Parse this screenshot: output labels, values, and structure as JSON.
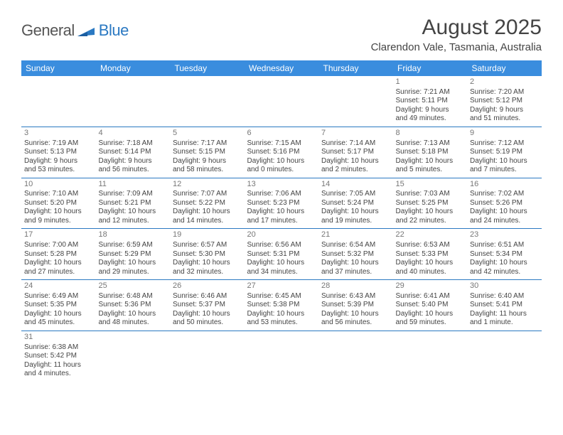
{
  "brand": {
    "word1": "General",
    "word2": "Blue",
    "logo_color": "#2b79c2"
  },
  "title": {
    "month": "August 2025",
    "location": "Clarendon Vale, Tasmania, Australia"
  },
  "colors": {
    "header_bg": "#3a8dde",
    "header_text": "#ffffff",
    "border": "#2b79c2",
    "body_text": "#444444",
    "daynum": "#777777"
  },
  "weekdays": [
    "Sunday",
    "Monday",
    "Tuesday",
    "Wednesday",
    "Thursday",
    "Friday",
    "Saturday"
  ],
  "weeks": [
    [
      null,
      null,
      null,
      null,
      null,
      {
        "n": "1",
        "sr": "Sunrise: 7:21 AM",
        "ss": "Sunset: 5:11 PM",
        "d1": "Daylight: 9 hours",
        "d2": "and 49 minutes."
      },
      {
        "n": "2",
        "sr": "Sunrise: 7:20 AM",
        "ss": "Sunset: 5:12 PM",
        "d1": "Daylight: 9 hours",
        "d2": "and 51 minutes."
      }
    ],
    [
      {
        "n": "3",
        "sr": "Sunrise: 7:19 AM",
        "ss": "Sunset: 5:13 PM",
        "d1": "Daylight: 9 hours",
        "d2": "and 53 minutes."
      },
      {
        "n": "4",
        "sr": "Sunrise: 7:18 AM",
        "ss": "Sunset: 5:14 PM",
        "d1": "Daylight: 9 hours",
        "d2": "and 56 minutes."
      },
      {
        "n": "5",
        "sr": "Sunrise: 7:17 AM",
        "ss": "Sunset: 5:15 PM",
        "d1": "Daylight: 9 hours",
        "d2": "and 58 minutes."
      },
      {
        "n": "6",
        "sr": "Sunrise: 7:15 AM",
        "ss": "Sunset: 5:16 PM",
        "d1": "Daylight: 10 hours",
        "d2": "and 0 minutes."
      },
      {
        "n": "7",
        "sr": "Sunrise: 7:14 AM",
        "ss": "Sunset: 5:17 PM",
        "d1": "Daylight: 10 hours",
        "d2": "and 2 minutes."
      },
      {
        "n": "8",
        "sr": "Sunrise: 7:13 AM",
        "ss": "Sunset: 5:18 PM",
        "d1": "Daylight: 10 hours",
        "d2": "and 5 minutes."
      },
      {
        "n": "9",
        "sr": "Sunrise: 7:12 AM",
        "ss": "Sunset: 5:19 PM",
        "d1": "Daylight: 10 hours",
        "d2": "and 7 minutes."
      }
    ],
    [
      {
        "n": "10",
        "sr": "Sunrise: 7:10 AM",
        "ss": "Sunset: 5:20 PM",
        "d1": "Daylight: 10 hours",
        "d2": "and 9 minutes."
      },
      {
        "n": "11",
        "sr": "Sunrise: 7:09 AM",
        "ss": "Sunset: 5:21 PM",
        "d1": "Daylight: 10 hours",
        "d2": "and 12 minutes."
      },
      {
        "n": "12",
        "sr": "Sunrise: 7:07 AM",
        "ss": "Sunset: 5:22 PM",
        "d1": "Daylight: 10 hours",
        "d2": "and 14 minutes."
      },
      {
        "n": "13",
        "sr": "Sunrise: 7:06 AM",
        "ss": "Sunset: 5:23 PM",
        "d1": "Daylight: 10 hours",
        "d2": "and 17 minutes."
      },
      {
        "n": "14",
        "sr": "Sunrise: 7:05 AM",
        "ss": "Sunset: 5:24 PM",
        "d1": "Daylight: 10 hours",
        "d2": "and 19 minutes."
      },
      {
        "n": "15",
        "sr": "Sunrise: 7:03 AM",
        "ss": "Sunset: 5:25 PM",
        "d1": "Daylight: 10 hours",
        "d2": "and 22 minutes."
      },
      {
        "n": "16",
        "sr": "Sunrise: 7:02 AM",
        "ss": "Sunset: 5:26 PM",
        "d1": "Daylight: 10 hours",
        "d2": "and 24 minutes."
      }
    ],
    [
      {
        "n": "17",
        "sr": "Sunrise: 7:00 AM",
        "ss": "Sunset: 5:28 PM",
        "d1": "Daylight: 10 hours",
        "d2": "and 27 minutes."
      },
      {
        "n": "18",
        "sr": "Sunrise: 6:59 AM",
        "ss": "Sunset: 5:29 PM",
        "d1": "Daylight: 10 hours",
        "d2": "and 29 minutes."
      },
      {
        "n": "19",
        "sr": "Sunrise: 6:57 AM",
        "ss": "Sunset: 5:30 PM",
        "d1": "Daylight: 10 hours",
        "d2": "and 32 minutes."
      },
      {
        "n": "20",
        "sr": "Sunrise: 6:56 AM",
        "ss": "Sunset: 5:31 PM",
        "d1": "Daylight: 10 hours",
        "d2": "and 34 minutes."
      },
      {
        "n": "21",
        "sr": "Sunrise: 6:54 AM",
        "ss": "Sunset: 5:32 PM",
        "d1": "Daylight: 10 hours",
        "d2": "and 37 minutes."
      },
      {
        "n": "22",
        "sr": "Sunrise: 6:53 AM",
        "ss": "Sunset: 5:33 PM",
        "d1": "Daylight: 10 hours",
        "d2": "and 40 minutes."
      },
      {
        "n": "23",
        "sr": "Sunrise: 6:51 AM",
        "ss": "Sunset: 5:34 PM",
        "d1": "Daylight: 10 hours",
        "d2": "and 42 minutes."
      }
    ],
    [
      {
        "n": "24",
        "sr": "Sunrise: 6:49 AM",
        "ss": "Sunset: 5:35 PM",
        "d1": "Daylight: 10 hours",
        "d2": "and 45 minutes."
      },
      {
        "n": "25",
        "sr": "Sunrise: 6:48 AM",
        "ss": "Sunset: 5:36 PM",
        "d1": "Daylight: 10 hours",
        "d2": "and 48 minutes."
      },
      {
        "n": "26",
        "sr": "Sunrise: 6:46 AM",
        "ss": "Sunset: 5:37 PM",
        "d1": "Daylight: 10 hours",
        "d2": "and 50 minutes."
      },
      {
        "n": "27",
        "sr": "Sunrise: 6:45 AM",
        "ss": "Sunset: 5:38 PM",
        "d1": "Daylight: 10 hours",
        "d2": "and 53 minutes."
      },
      {
        "n": "28",
        "sr": "Sunrise: 6:43 AM",
        "ss": "Sunset: 5:39 PM",
        "d1": "Daylight: 10 hours",
        "d2": "and 56 minutes."
      },
      {
        "n": "29",
        "sr": "Sunrise: 6:41 AM",
        "ss": "Sunset: 5:40 PM",
        "d1": "Daylight: 10 hours",
        "d2": "and 59 minutes."
      },
      {
        "n": "30",
        "sr": "Sunrise: 6:40 AM",
        "ss": "Sunset: 5:41 PM",
        "d1": "Daylight: 11 hours",
        "d2": "and 1 minute."
      }
    ],
    [
      {
        "n": "31",
        "sr": "Sunrise: 6:38 AM",
        "ss": "Sunset: 5:42 PM",
        "d1": "Daylight: 11 hours",
        "d2": "and 4 minutes."
      },
      null,
      null,
      null,
      null,
      null,
      null
    ]
  ]
}
